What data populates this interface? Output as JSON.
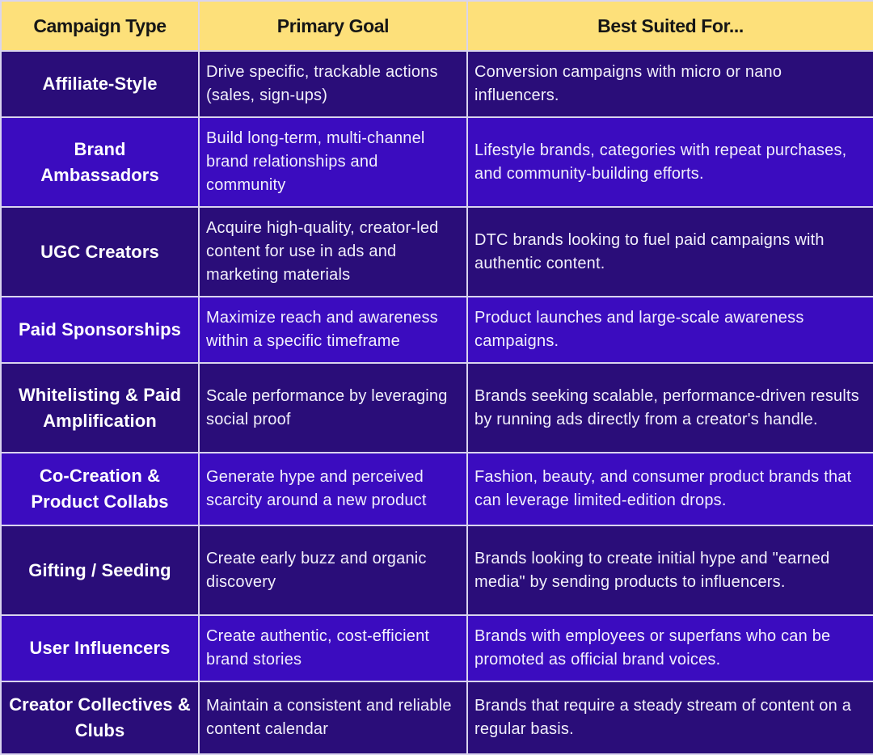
{
  "header": {
    "campaign_type": "Campaign Type",
    "primary_goal": "Primary Goal",
    "best_suited_for": "Best Suited For..."
  },
  "rows": [
    {
      "type": "Affiliate-Style",
      "goal": "Drive specific, trackable actions (sales, sign-ups)",
      "suited": "Conversion campaigns with micro or nano influencers."
    },
    {
      "type": "Brand Ambassadors",
      "goal": "Build long-term, multi-channel brand relationships and community",
      "suited": "Lifestyle brands, categories with repeat purchases, and community-building efforts."
    },
    {
      "type": "UGC Creators",
      "goal": "Acquire high-quality, creator-led content for use in ads and marketing materials",
      "suited": "DTC brands looking to fuel paid campaigns with authentic content."
    },
    {
      "type": "Paid Sponsorships",
      "goal": "Maximize reach and awareness within a specific timeframe",
      "suited": "Product launches and large-scale awareness campaigns."
    },
    {
      "type": "Whitelisting & Paid Amplification",
      "goal": "Scale performance by leveraging social proof",
      "suited": "Brands seeking scalable, performance-driven results by running ads directly from a creator's handle."
    },
    {
      "type": "Co-Creation & Product Collabs",
      "goal": "Generate hype and perceived scarcity around a new product",
      "suited": "Fashion, beauty, and consumer product brands that can leverage limited-edition drops."
    },
    {
      "type": "Gifting / Seeding",
      "goal": "Create early buzz and organic discovery",
      "suited": "Brands looking to create initial hype and \"earned media\" by sending products to influencers."
    },
    {
      "type": "User Influencers",
      "goal": "Create authentic, cost-efficient brand stories",
      "suited": "Brands with employees or superfans who can be promoted as official brand voices."
    },
    {
      "type": "Creator Collectives & Clubs",
      "goal": "Maintain a consistent and reliable content calendar",
      "suited": "Brands that require a steady stream of content on a regular basis."
    }
  ],
  "colors": {
    "header_bg": "#fde07a",
    "row_dark": "#2a0d79",
    "row_bright": "#3b0cbf",
    "grid_line": "#d9d4ee"
  }
}
